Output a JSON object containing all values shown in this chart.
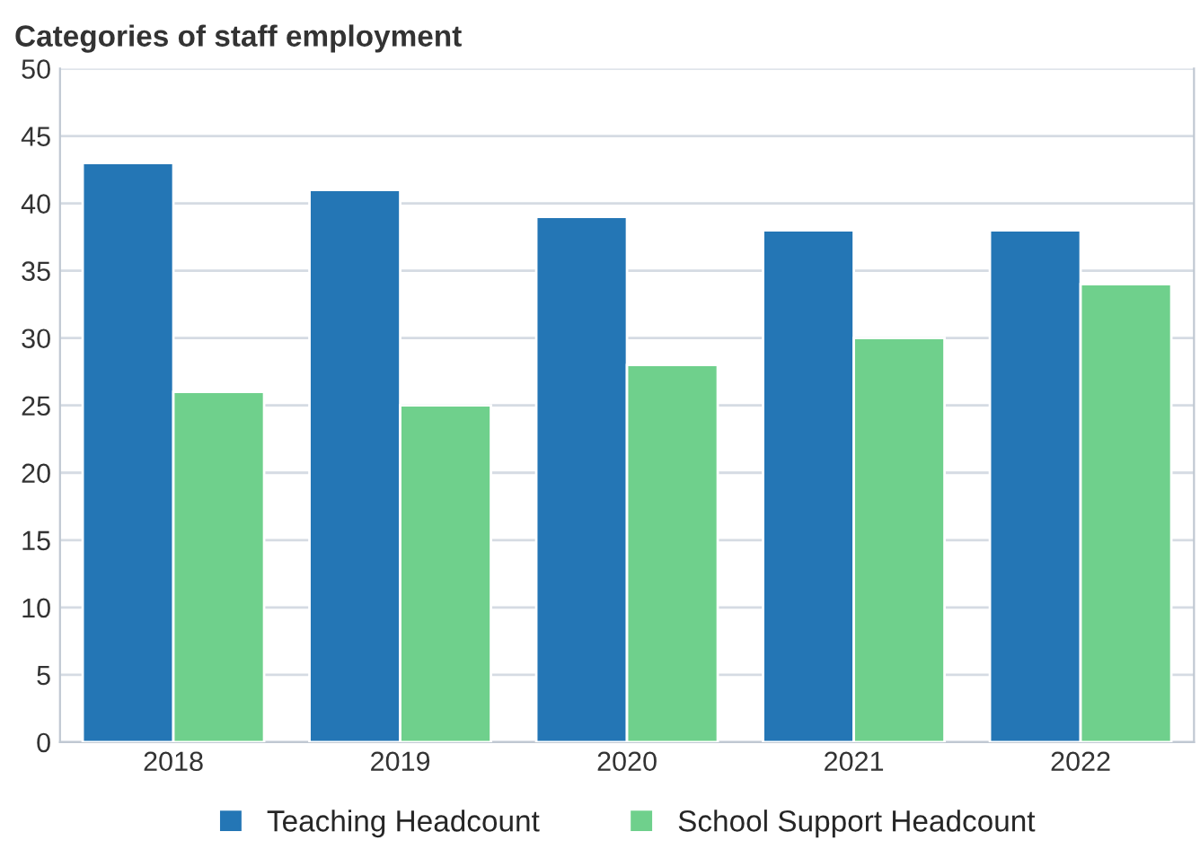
{
  "chart_data": {
    "type": "bar",
    "title": "Categories of staff employment",
    "categories": [
      "2018",
      "2019",
      "2020",
      "2021",
      "2022"
    ],
    "series": [
      {
        "name": "Teaching Headcount",
        "color": "#2476b5",
        "values": [
          43,
          41,
          39,
          38,
          38
        ]
      },
      {
        "name": "School Support Headcount",
        "color": "#6fd08c",
        "values": [
          26,
          25,
          28,
          30,
          34
        ]
      }
    ],
    "ylim": [
      0,
      50
    ],
    "yticks": [
      0,
      5,
      10,
      15,
      20,
      25,
      30,
      35,
      40,
      45,
      50
    ],
    "grid": "y",
    "legend": "bottom"
  }
}
